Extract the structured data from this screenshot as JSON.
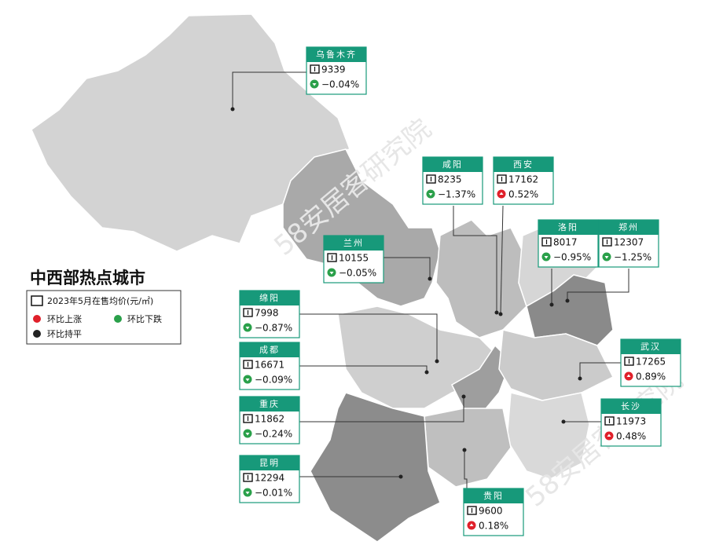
{
  "title": "中西部热点城市",
  "watermark": "58安居客研究院",
  "legend": {
    "price": "2023年5月在售均价(元/㎡)",
    "up": "环比上涨",
    "down": "环比下跌",
    "flat": "环比持平"
  },
  "cities": [
    {
      "name": "乌鲁木齐",
      "price": "9339",
      "change": "−0.04%"
    },
    {
      "name": "咸阳",
      "price": "8235",
      "change": "−1.37%"
    },
    {
      "name": "西安",
      "price": "17162",
      "change": "0.52%"
    },
    {
      "name": "兰州",
      "price": "10155",
      "change": "−0.05%"
    },
    {
      "name": "洛阳",
      "price": "8017",
      "change": "−0.95%"
    },
    {
      "name": "郑州",
      "price": "12307",
      "change": "−1.25%"
    },
    {
      "name": "绵阳",
      "price": "7998",
      "change": "−0.87%"
    },
    {
      "name": "成都",
      "price": "16671",
      "change": "−0.09%"
    },
    {
      "name": "武汉",
      "price": "17265",
      "change": "0.89%"
    },
    {
      "name": "重庆",
      "price": "11862",
      "change": "−0.24%"
    },
    {
      "name": "长沙",
      "price": "11973",
      "change": "0.48%"
    },
    {
      "name": "昆明",
      "price": "12294",
      "change": "−0.01%"
    },
    {
      "name": "贵阳",
      "price": "9600",
      "change": "0.18%"
    }
  ]
}
